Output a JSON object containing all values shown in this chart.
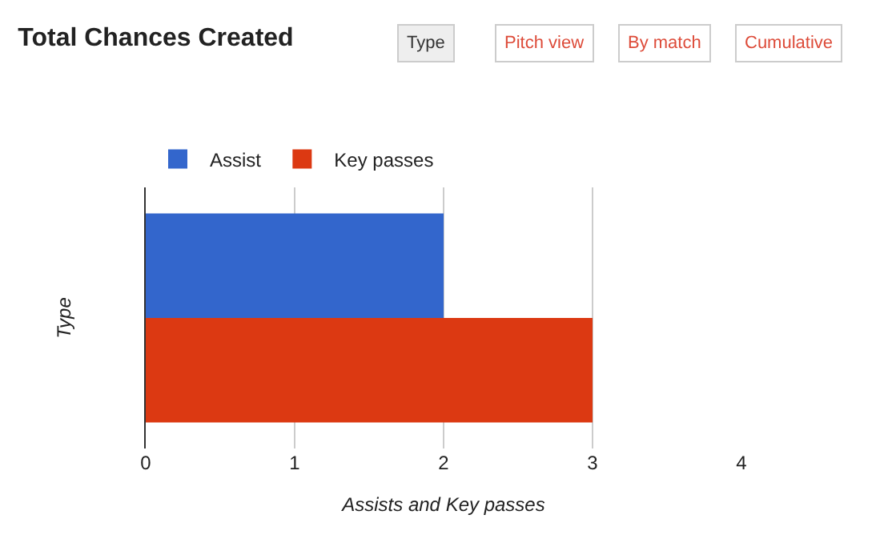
{
  "chart_data": {
    "type": "bar",
    "orientation": "horizontal",
    "title": "Total Chances Created",
    "annotations": [
      "Type",
      "Pitch view",
      "By match",
      "Cumulative"
    ],
    "categories": [
      null
    ],
    "series": [
      {
        "name": "Assist",
        "color": "#3366cc",
        "values": [
          2
        ]
      },
      {
        "name": "Key passes",
        "color": "#dc3912",
        "values": [
          3
        ]
      }
    ],
    "xlabel": "Assists and Key passes",
    "ylabel": "Type",
    "xlim": [
      0,
      4
    ],
    "xticks": [
      0,
      1,
      2,
      3,
      4
    ],
    "grid": "x",
    "legend": "top left"
  }
}
